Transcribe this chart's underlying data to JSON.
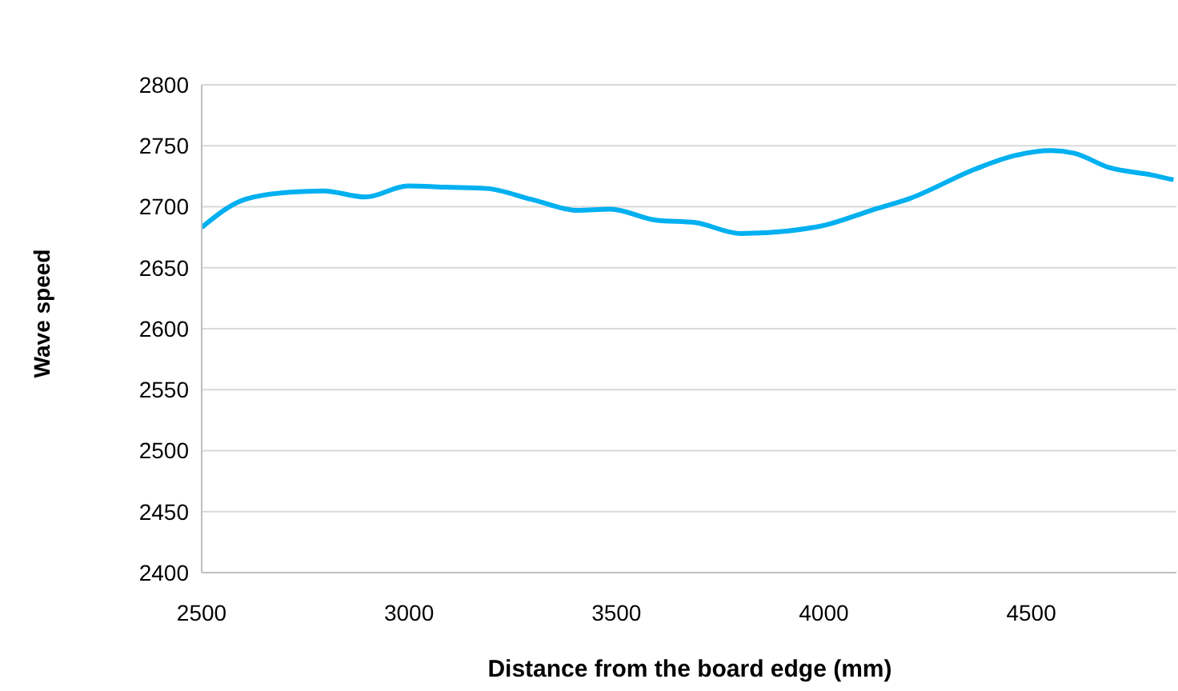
{
  "chart_data": {
    "type": "line",
    "xlabel": "Distance from the board edge (mm)",
    "ylabel": "Wave speed",
    "x": [
      2500,
      2604,
      2714,
      2793,
      2895,
      2997,
      3092,
      3186,
      3296,
      3406,
      3485,
      3595,
      3690,
      3800,
      3910,
      4004,
      4114,
      4209,
      4366,
      4461,
      4547,
      4602,
      4689,
      4791,
      4843
    ],
    "series": [
      {
        "color": "#00b0f0",
        "values": [
          2683,
          2706,
          2712,
          2713,
          2708,
          2717,
          2716,
          2715,
          2706,
          2697,
          2698,
          2689,
          2687,
          2678,
          2680,
          2685,
          2697,
          2707,
          2731,
          2742,
          2746,
          2744,
          2732,
          2726,
          2722
        ]
      }
    ],
    "xlim": [
      2500,
      4850
    ],
    "xticks": [
      2500,
      3000,
      3500,
      4000,
      4500
    ],
    "ylim": [
      2400,
      2800
    ],
    "yticks": [
      2400,
      2450,
      2500,
      2550,
      2600,
      2650,
      2700,
      2750,
      2800
    ],
    "grid": "y",
    "marker": "none",
    "line_style": "solid"
  }
}
